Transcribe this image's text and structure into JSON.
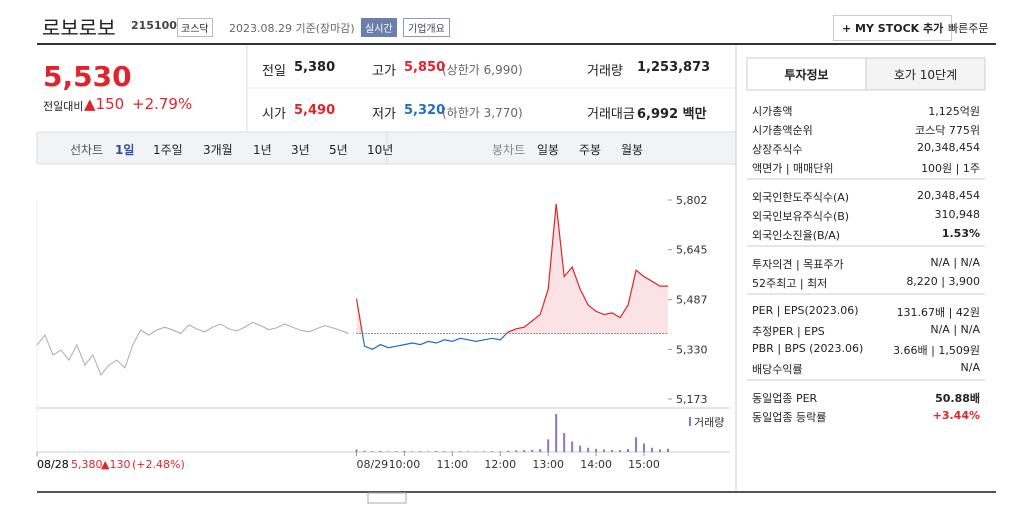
{
  "header": {
    "name": "로보로보",
    "code": "215100",
    "market": "코스닥",
    "date": "2023.08.29 기준(장마감)",
    "realtime": "실시간",
    "overview": "기업개요",
    "mystock": "+ MY STOCK 추가",
    "quick_order": "빠른주문"
  },
  "price": {
    "current": "5,530",
    "change_label": "전일대비",
    "change": "▲150",
    "change_pct": "+2.79%"
  },
  "summary": [
    {
      "label": "전일",
      "value": "5,380"
    },
    {
      "label": "고가",
      "value": "5,850",
      "note": "(상한가 6,990)"
    },
    {
      "label": "거래량",
      "value": "1,253,873"
    },
    {
      "label": "시가",
      "value": "5,490"
    },
    {
      "label": "저가",
      "value": "5,320",
      "note": "(하한가 3,770)"
    },
    {
      "label": "거래대금",
      "value": "6,992 백만"
    }
  ],
  "toolbar": {
    "line_label": "선차트",
    "periods": [
      "1일",
      "1주일",
      "3개월",
      "1년",
      "3년",
      "5년",
      "10년"
    ],
    "candle_label": "봉차트",
    "candles": [
      "일봉",
      "주봉",
      "월봉"
    ]
  },
  "chart_data": {
    "type": "line",
    "categories": [
      "08/28",
      null,
      null,
      null,
      null,
      null,
      null,
      null,
      null,
      null,
      null,
      null,
      null,
      null,
      null,
      null,
      null,
      null,
      null,
      null,
      null,
      null,
      null,
      null,
      null,
      null,
      null,
      null,
      null,
      null,
      null,
      null,
      null,
      null,
      null,
      null,
      null,
      null,
      null,
      null,
      "08/29",
      null,
      null,
      null,
      null,
      null,
      "10:00",
      null,
      null,
      null,
      null,
      null,
      "11:00",
      null,
      null,
      null,
      null,
      null,
      "12:00",
      null,
      null,
      null,
      null,
      null,
      "13:00",
      null,
      null,
      null,
      null,
      null,
      "14:00",
      null,
      null,
      null,
      null,
      null,
      "15:00",
      null,
      null,
      null
    ],
    "ylim": [
      5173,
      5802
    ],
    "yticks": [
      {
        "value": 5802,
        "label": "5,802"
      },
      {
        "value": 5645,
        "label": "5,645"
      },
      {
        "value": 5487,
        "label": "5,487"
      },
      {
        "value": 5330,
        "label": "5,330"
      },
      {
        "value": 5173,
        "label": "5,173"
      }
    ],
    "baseline": 5380,
    "series": [
      {
        "color": "#aaaaaa",
        "values": [
          5344,
          5375,
          5312,
          5328,
          5296,
          5344,
          5280,
          5312,
          5249,
          5280,
          5296,
          5271,
          5344,
          5391,
          5375,
          5391,
          5400,
          5391,
          5380,
          5407,
          5395,
          5385,
          5400,
          5410,
          5395,
          5388,
          5400,
          5415,
          5405,
          5392,
          5398,
          5410,
          5400,
          5390,
          5385,
          5395,
          5405,
          5398,
          5390,
          5380,
          null,
          null,
          null,
          null,
          null,
          null,
          null,
          null,
          null,
          null,
          null,
          null,
          null,
          null,
          null,
          null,
          null,
          null,
          null,
          null,
          null,
          null,
          null,
          null,
          null,
          null,
          null,
          null,
          null,
          null,
          null,
          null,
          null,
          null,
          null,
          null,
          null,
          null,
          null,
          null
        ]
      },
      {
        "color": "#e1242c",
        "down_color": "#1f6fc5",
        "fill": "#fbe3e5",
        "values": [
          null,
          null,
          null,
          null,
          null,
          null,
          null,
          null,
          null,
          null,
          null,
          null,
          null,
          null,
          null,
          null,
          null,
          null,
          null,
          null,
          null,
          null,
          null,
          null,
          null,
          null,
          null,
          null,
          null,
          null,
          null,
          null,
          null,
          null,
          null,
          null,
          null,
          null,
          null,
          null,
          5490,
          5340,
          5330,
          5345,
          5335,
          5340,
          5345,
          5350,
          5345,
          5355,
          5350,
          5360,
          5355,
          5365,
          5360,
          5355,
          5360,
          5365,
          5360,
          5385,
          5395,
          5400,
          5420,
          5440,
          5520,
          5790,
          5560,
          5590,
          5520,
          5470,
          5450,
          5440,
          5445,
          5430,
          5470,
          5580,
          5560,
          5545,
          5530,
          5530
        ]
      },
      {
        "name": "거래량",
        "color": "#8a76c6",
        "axis": "volume",
        "values": [
          null,
          null,
          null,
          null,
          null,
          null,
          null,
          null,
          null,
          null,
          null,
          null,
          null,
          null,
          null,
          null,
          null,
          null,
          null,
          null,
          null,
          null,
          null,
          null,
          null,
          null,
          null,
          null,
          null,
          null,
          null,
          null,
          null,
          null,
          null,
          null,
          null,
          null,
          null,
          null,
          12000,
          6000,
          4000,
          5000,
          3000,
          4000,
          5000,
          3000,
          4000,
          3000,
          5000,
          4000,
          3000,
          4000,
          3000,
          2000,
          3000,
          4000,
          3000,
          6000,
          8000,
          9000,
          10000,
          14000,
          60000,
          180000,
          90000,
          50000,
          30000,
          20000,
          15000,
          12000,
          10000,
          9000,
          14000,
          70000,
          40000,
          20000,
          12000,
          15000
        ]
      }
    ]
  },
  "prev_day": {
    "date": "08/28",
    "close": "5,380",
    "change": "▲130",
    "change_pct": "(+2.48%)"
  },
  "panel": {
    "tabs": [
      "투자정보",
      "호가 10단계"
    ],
    "sections": [
      [
        {
          "label": "시가총액",
          "value": "1,125억원"
        },
        {
          "label": "시가총액순위",
          "value": "코스닥 775위"
        },
        {
          "label": "상장주식수",
          "value": "20,348,454"
        },
        {
          "label": "액면가 | 매매단위",
          "value": "100원 | 1주"
        }
      ],
      [
        {
          "label": "외국인한도주식수(A)",
          "value": "20,348,454"
        },
        {
          "label": "외국인보유주식수(B)",
          "value": "310,948"
        },
        {
          "label": "외국인소진율(B/A)",
          "value": "1.53%"
        }
      ],
      [
        {
          "label": "투자의견 | 목표주가",
          "value": "N/A | N/A"
        },
        {
          "label": "52주최고 | 최저",
          "value": "8,220 | 3,900"
        }
      ],
      [
        {
          "label": "PER | EPS(2023.06)",
          "value": "131.67배 | 42원"
        },
        {
          "label": "추정PER | EPS",
          "value": "N/A | N/A"
        },
        {
          "label": "PBR | BPS (2023.06)",
          "value": "3.66배 | 1,509원"
        },
        {
          "label": "배당수익률",
          "value": "N/A"
        }
      ],
      [
        {
          "label": "동일업종 PER",
          "value": "50.88배"
        },
        {
          "label": "동일업종 등락률",
          "value": "+3.44%"
        }
      ]
    ]
  }
}
